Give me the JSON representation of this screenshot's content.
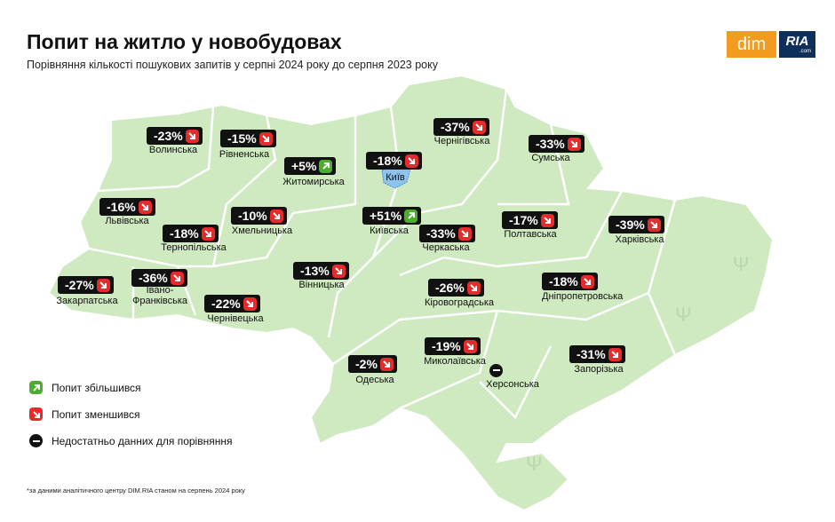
{
  "header": {
    "title": "Попит на житло у новобудовах",
    "subtitle": "Порівняння кількості пошукових запитів у серпні 2024 року до серпня 2023 року"
  },
  "logo": {
    "left": "dim",
    "right": "RIA",
    "suffix": ".com"
  },
  "regions": [
    {
      "name": "Волинська",
      "change": "-23%"
    },
    {
      "name": "Рівненська",
      "change": "-15%"
    },
    {
      "name": "Житомирська",
      "change": "+5%"
    },
    {
      "name": "Київ",
      "change": "-18%"
    },
    {
      "name": "Чернігівська",
      "change": "-37%"
    },
    {
      "name": "Сумська",
      "change": "-33%"
    },
    {
      "name": "Львівська",
      "change": "-16%"
    },
    {
      "name": "Хмельницька",
      "change": "-10%"
    },
    {
      "name": "Тернопільська",
      "change": "-18%"
    },
    {
      "name": "Київська",
      "change": "+51%"
    },
    {
      "name": "Черкаська",
      "change": "-33%"
    },
    {
      "name": "Полтавська",
      "change": "-17%"
    },
    {
      "name": "Харківська",
      "change": "-39%"
    },
    {
      "name": "Закарпатська",
      "change": "-27%"
    },
    {
      "name": "Івано-Франківська",
      "change": "-36%"
    },
    {
      "name": "Вінницька",
      "change": "-13%"
    },
    {
      "name": "Чернівецька",
      "change": "-22%"
    },
    {
      "name": "Кіровоградська",
      "change": "-26%"
    },
    {
      "name": "Дніпропетровська",
      "change": "-18%"
    },
    {
      "name": "Миколаївська",
      "change": "-19%"
    },
    {
      "name": "Одеська",
      "change": "-2%"
    },
    {
      "name": "Херсонська"
    },
    {
      "name": "Запорізька",
      "change": "-31%"
    }
  ],
  "legend": [
    "Попит збільшився",
    "Попит зменшився",
    "Недостатньо данних для порівняння"
  ],
  "footnote": "*за даними аналітичного центру DIM.RIA станом на серпень 2024 року"
}
